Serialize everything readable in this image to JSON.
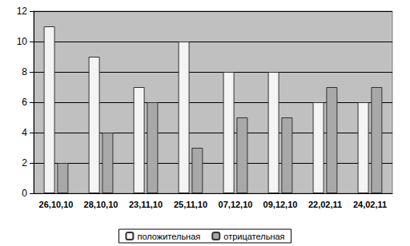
{
  "chart_data": {
    "type": "bar",
    "categories": [
      "26,10,10",
      "28,10,10",
      "23,11,10",
      "25,11,10",
      "07,12,10",
      "09,12,10",
      "22,02,11",
      "24,02,11"
    ],
    "series": [
      {
        "name": "положительная",
        "color": "#f4f4f4",
        "values": [
          11,
          9,
          7,
          10,
          8,
          8,
          6,
          6
        ]
      },
      {
        "name": "отрицательная",
        "color": "#a8a8a8",
        "values": [
          2,
          4,
          6,
          3,
          5,
          5,
          7,
          7
        ]
      }
    ],
    "ylim": [
      0,
      12
    ],
    "yticks": [
      0,
      2,
      4,
      6,
      8,
      10,
      12
    ],
    "grid": true,
    "legend": "bottom"
  }
}
